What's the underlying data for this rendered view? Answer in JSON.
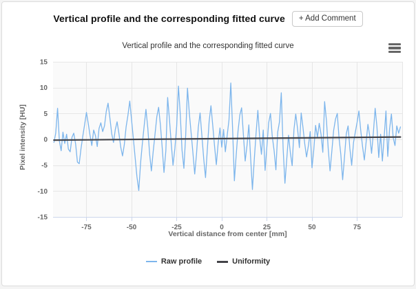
{
  "card": {
    "title": "Vertical profile and the corresponding fitted curve",
    "add_comment_label": "+ Add Comment"
  },
  "chart_data": {
    "type": "line",
    "title": "Vertical profile and the corresponding fitted curve",
    "xlabel": "Vertical distance from center [mm]",
    "ylabel": "Pixel intensity [HU]",
    "xlim": [
      -93.5,
      100
    ],
    "ylim": [
      -15,
      15
    ],
    "x_ticks": [
      -75,
      -50,
      -25,
      0,
      25,
      50,
      75
    ],
    "y_ticks": [
      -15,
      -10,
      -5,
      0,
      5,
      10,
      15
    ],
    "grid": true,
    "legend_position": "bottom",
    "colors": {
      "raw": "#7cb5ec",
      "uniformity": "#434348",
      "grid": "#e6e6e6",
      "axis_line": "#ccd6eb",
      "plot_bg": "#fafafa",
      "tick_label": "#666666",
      "legend_text": "#333333"
    },
    "series": [
      {
        "name": "Raw profile",
        "color_key": "raw",
        "width": 1.3,
        "x_start": -93,
        "x_step": 1,
        "values": [
          -0.6,
          1.2,
          6.0,
          -0.3,
          -2.2,
          1.4,
          -0.8,
          1.0,
          -1.9,
          -2.4,
          0.4,
          1.2,
          -0.9,
          -4.4,
          -4.7,
          -1.8,
          0.6,
          2.9,
          5.2,
          3.1,
          0.8,
          -1.2,
          1.8,
          0.7,
          -1.4,
          2.1,
          3.2,
          1.5,
          2.6,
          5.4,
          7.0,
          4.2,
          1.1,
          -0.6,
          1.9,
          3.4,
          1.2,
          -1.5,
          -3.2,
          -1.0,
          2.4,
          4.6,
          7.4,
          3.8,
          0.2,
          -3.5,
          -7.2,
          -9.9,
          -4.6,
          -0.8,
          2.6,
          5.8,
          2.2,
          -2.8,
          -6.1,
          -2.4,
          0.9,
          4.4,
          6.2,
          2.8,
          -1.6,
          -6.4,
          -2.2,
          8.1,
          3.9,
          -0.7,
          -5.0,
          -1.8,
          2.5,
          10.3,
          4.9,
          -2.1,
          -5.6,
          0.8,
          9.9,
          5.2,
          1.4,
          -2.6,
          -6.7,
          -2.9,
          2.3,
          5.1,
          0.6,
          -3.8,
          -7.4,
          -2.0,
          3.4,
          6.5,
          2.7,
          -1.3,
          -4.9,
          -0.8,
          2.2,
          -1.5,
          1.9,
          -2.4,
          0.7,
          3.8,
          10.9,
          2.1,
          -8.0,
          -3.1,
          1.6,
          4.7,
          6.1,
          0.9,
          -4.2,
          -1.1,
          2.8,
          -3.6,
          -9.7,
          -4.1,
          1.2,
          5.6,
          0.4,
          -2.9,
          1.8,
          -6.0,
          -1.4,
          3.2,
          5.0,
          0.6,
          -2.2,
          -5.9,
          1.4,
          3.4,
          9.0,
          -1.8,
          -8.5,
          -3.9,
          0.8,
          -2.6,
          -5.1,
          1.9,
          4.9,
          2.1,
          -1.6,
          5.1,
          2.3,
          -0.9,
          -3.4,
          -1.2,
          1.5,
          -5.5,
          -2.0,
          2.7,
          0.4,
          3.1,
          1.0,
          -2.5,
          7.3,
          3.6,
          -1.9,
          -6.1,
          -2.3,
          1.7,
          3.9,
          5.0,
          0.2,
          -3.0,
          -7.8,
          -3.4,
          1.1,
          2.6,
          -1.8,
          -5.0,
          -0.6,
          1.4,
          3.3,
          5.5,
          1.8,
          -1.4,
          -4.0,
          -0.5,
          2.9,
          0.7,
          -2.7,
          1.3,
          6.0,
          2.4,
          -3.5,
          1.0,
          -4.2,
          0.5,
          5.5,
          -3.3,
          2.1,
          4.9,
          0.3,
          -1.2,
          2.6,
          1.2,
          2.4
        ]
      },
      {
        "name": "Uniformity",
        "color_key": "uniformity",
        "width": 2.2,
        "x": [
          -93,
          99
        ],
        "values": [
          -0.15,
          0.45
        ]
      }
    ]
  }
}
